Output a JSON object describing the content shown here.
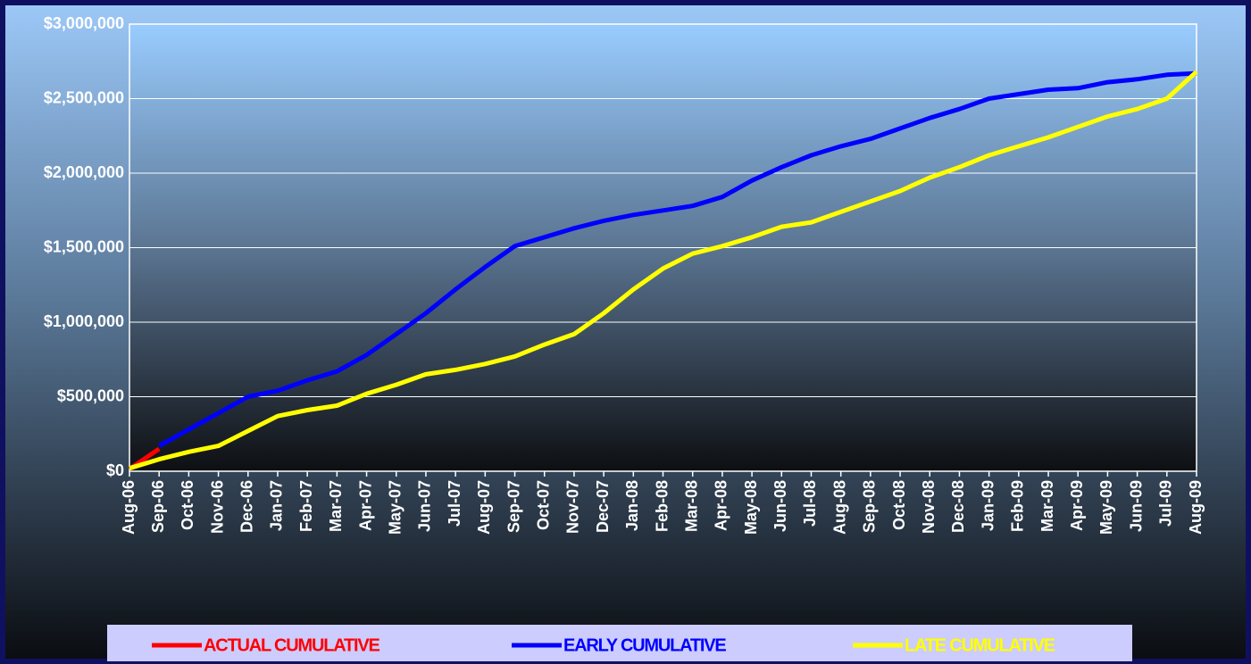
{
  "chart_data": {
    "type": "line",
    "categories": [
      "Aug-06",
      "Sep-06",
      "Oct-06",
      "Nov-06",
      "Dec-06",
      "Jan-07",
      "Feb-07",
      "Mar-07",
      "Apr-07",
      "May-07",
      "Jun-07",
      "Jul-07",
      "Aug-07",
      "Sep-07",
      "Oct-07",
      "Nov-07",
      "Dec-07",
      "Jan-08",
      "Feb-08",
      "Mar-08",
      "Apr-08",
      "May-08",
      "Jun-08",
      "Jul-08",
      "Aug-08",
      "Sep-08",
      "Oct-08",
      "Nov-08",
      "Dec-08",
      "Jan-09",
      "Feb-09",
      "Mar-09",
      "Apr-09",
      "May-09",
      "Jun-09",
      "Jul-09",
      "Aug-09"
    ],
    "series": [
      {
        "name": "ACTUAL CUMULATIVE",
        "color": "#ff0000",
        "values": [
          15000,
          150000,
          null,
          null,
          null,
          null,
          null,
          null,
          null,
          null,
          null,
          null,
          null,
          null,
          null,
          null,
          null,
          null,
          null,
          null,
          null,
          null,
          null,
          null,
          null,
          null,
          null,
          null,
          null,
          null,
          null,
          null,
          null,
          null,
          null,
          null,
          null
        ]
      },
      {
        "name": "EARLY CUMULATIVE",
        "color": "#0000ff",
        "values": [
          null,
          170000,
          280000,
          390000,
          500000,
          540000,
          610000,
          670000,
          780000,
          920000,
          1060000,
          1220000,
          1370000,
          1510000,
          1570000,
          1630000,
          1680000,
          1720000,
          1750000,
          1780000,
          1840000,
          1950000,
          2040000,
          2120000,
          2180000,
          2230000,
          2300000,
          2370000,
          2430000,
          2500000,
          2530000,
          2560000,
          2570000,
          2610000,
          2630000,
          2660000,
          2670000
        ]
      },
      {
        "name": "LATE CUMULATIVE",
        "color": "#ffff00",
        "values": [
          20000,
          80000,
          130000,
          170000,
          270000,
          370000,
          410000,
          440000,
          520000,
          580000,
          650000,
          680000,
          720000,
          770000,
          850000,
          920000,
          1060000,
          1220000,
          1360000,
          1460000,
          1510000,
          1570000,
          1640000,
          1670000,
          1740000,
          1810000,
          1880000,
          1970000,
          2040000,
          2120000,
          2180000,
          2240000,
          2310000,
          2380000,
          2430000,
          2500000,
          2680000
        ]
      }
    ],
    "ylim": [
      0,
      3000000
    ],
    "yticks": [
      {
        "value": 0,
        "label": "$0"
      },
      {
        "value": 500000,
        "label": "$500,000"
      },
      {
        "value": 1000000,
        "label": "$1,000,000"
      },
      {
        "value": 1500000,
        "label": "$1,500,000"
      },
      {
        "value": 2000000,
        "label": "$2,000,000"
      },
      {
        "value": 2500000,
        "label": "$2,500,000"
      },
      {
        "value": 3000000,
        "label": "$3,000,000"
      }
    ],
    "grid": true,
    "legend": "bottom"
  }
}
